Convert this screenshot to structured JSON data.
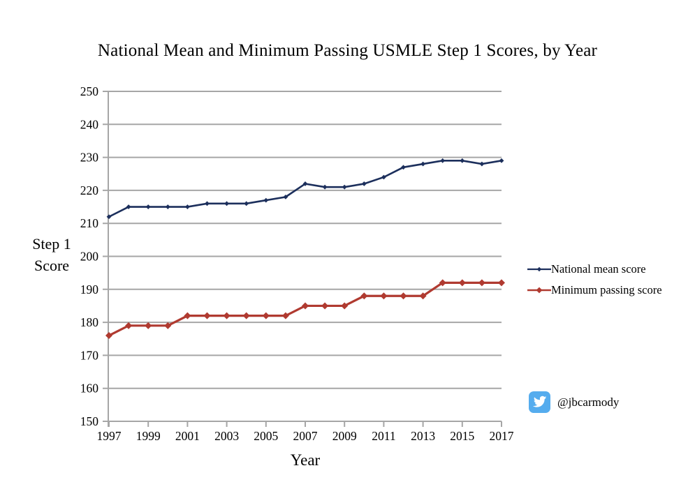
{
  "chart_data": {
    "type": "line",
    "title": "National Mean and Minimum Passing USMLE Step 1 Scores, by Year",
    "xlabel": "Year",
    "ylabel": "Step 1 Score",
    "ylabel_lines": [
      "Step 1",
      "Score"
    ],
    "x": [
      1997,
      1998,
      1999,
      2000,
      2001,
      2002,
      2003,
      2004,
      2005,
      2006,
      2007,
      2008,
      2009,
      2010,
      2011,
      2012,
      2013,
      2014,
      2015,
      2016,
      2017
    ],
    "xticks": [
      1997,
      1999,
      2001,
      2003,
      2005,
      2007,
      2009,
      2011,
      2013,
      2015,
      2017
    ],
    "yticks": [
      150,
      160,
      170,
      180,
      190,
      200,
      210,
      220,
      230,
      240,
      250
    ],
    "ylim": [
      150,
      250
    ],
    "xlim": [
      1997,
      2017
    ],
    "grid": "horizontal",
    "grid_color": "#a6a6a6",
    "axis_color": "#a6a6a6",
    "legend_position": "right",
    "series": [
      {
        "name": "National mean score",
        "color": "#1c2f5c",
        "marker": "diamond-small",
        "line_width": 2.6,
        "marker_size": 3.4,
        "values": [
          212,
          215,
          215,
          215,
          215,
          216,
          216,
          216,
          217,
          218,
          222,
          221,
          221,
          222,
          224,
          227,
          228,
          229,
          229,
          228,
          229
        ]
      },
      {
        "name": "Minimum passing score",
        "color": "#b03a30",
        "marker": "diamond",
        "line_width": 3.2,
        "marker_size": 5,
        "values": [
          176,
          179,
          179,
          179,
          182,
          182,
          182,
          182,
          182,
          182,
          185,
          185,
          185,
          188,
          188,
          188,
          188,
          192,
          192,
          192,
          192
        ]
      }
    ]
  },
  "footer": {
    "twitter_handle": "@jbcarmody",
    "twitter_icon_color": "#55acee"
  }
}
